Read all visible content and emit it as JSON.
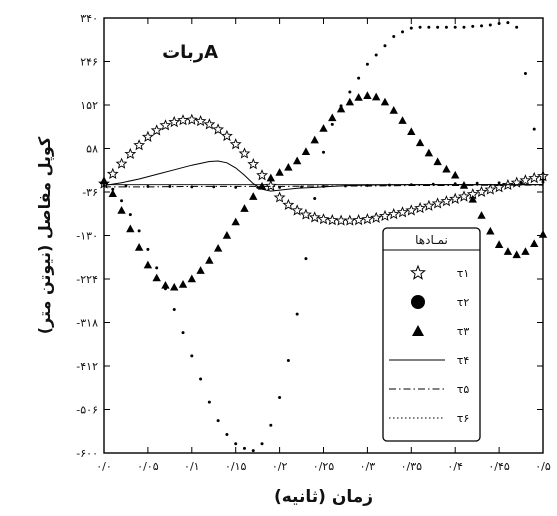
{
  "chart_data": {
    "type": "scatter",
    "title": "رباتA",
    "xlabel": "زمان (ثانیه)",
    "ylabel": "کوپل مفاصل (نیوتن متر)",
    "xlim": [
      0,
      0.5
    ],
    "ylim": [
      -600,
      340
    ],
    "x_ticks": [
      0,
      0.05,
      0.1,
      0.15,
      0.2,
      0.25,
      0.3,
      0.35,
      0.4,
      0.45,
      0.5
    ],
    "x_tick_labels": [
      "۰/۰",
      "۰/۰۵",
      "۰/۱",
      "۰/۱۵",
      "۰/۲",
      "۰/۲۵",
      "۰/۳",
      "۰/۳۵",
      "۰/۴",
      "۰/۴۵",
      "۰/۵"
    ],
    "y_ticks": [
      340,
      246,
      152,
      58,
      -36,
      -130,
      -224,
      -318,
      -412,
      -506,
      -600
    ],
    "y_tick_labels": [
      "۳۴۰",
      "۲۴۶",
      "۱۵۲",
      "۵۸",
      "-۳۶",
      "-۱۳۰",
      "-۲۲۴",
      "-۳۱۸",
      "-۴۱۲",
      "-۵۰۶",
      "-۶۰۰"
    ],
    "legend_title": "نمـادها",
    "legend_position": "bottom-right",
    "series": [
      {
        "name": "τ۱",
        "marker": "star",
        "x": [
          0,
          0.01,
          0.02,
          0.03,
          0.04,
          0.05,
          0.06,
          0.07,
          0.08,
          0.09,
          0.1,
          0.11,
          0.12,
          0.13,
          0.14,
          0.15,
          0.16,
          0.17,
          0.18,
          0.19,
          0.2,
          0.21,
          0.22,
          0.23,
          0.24,
          0.25,
          0.26,
          0.27,
          0.28,
          0.29,
          0.3,
          0.31,
          0.32,
          0.33,
          0.34,
          0.35,
          0.36,
          0.37,
          0.38,
          0.39,
          0.4,
          0.41,
          0.42,
          0.43,
          0.44,
          0.45,
          0.46,
          0.47,
          0.48,
          0.49,
          0.5
        ],
        "y": [
          -18,
          3,
          25,
          46,
          65,
          83,
          97,
          108,
          115,
          119,
          120,
          117,
          110,
          99,
          85,
          67,
          47,
          24,
          0,
          -23,
          -48,
          -64,
          -76,
          -85,
          -91,
          -95,
          -97,
          -98,
          -98,
          -97,
          -95,
          -92,
          -88,
          -84,
          -80,
          -76,
          -71,
          -66,
          -61,
          -56,
          -51,
          -46,
          -41,
          -36,
          -31,
          -26,
          -21,
          -16,
          -11,
          -6,
          -2
        ]
      },
      {
        "name": "τ۲",
        "marker": "circle",
        "x": [
          0,
          0.025,
          0.05,
          0.075,
          0.1,
          0.125,
          0.15,
          0.175,
          0.2,
          0.225,
          0.25,
          0.275,
          0.3,
          0.325,
          0.35,
          0.375,
          0.4,
          0.425,
          0.45,
          0.475,
          0.5
        ],
        "y": [
          -22,
          -23,
          -24,
          -24,
          -25,
          -25,
          -26,
          -26,
          -26,
          -25,
          -24,
          -23,
          -22,
          -21,
          -20,
          -19,
          -18,
          -17,
          -16,
          -16,
          -15
        ]
      },
      {
        "name": "τ۳",
        "marker": "triangle",
        "x": [
          0,
          0.01,
          0.02,
          0.03,
          0.04,
          0.05,
          0.06,
          0.07,
          0.08,
          0.09,
          0.1,
          0.11,
          0.12,
          0.13,
          0.14,
          0.15,
          0.16,
          0.17,
          0.18,
          0.19,
          0.2,
          0.21,
          0.22,
          0.23,
          0.24,
          0.25,
          0.26,
          0.27,
          0.28,
          0.29,
          0.3,
          0.31,
          0.32,
          0.33,
          0.34,
          0.35,
          0.36,
          0.37,
          0.38,
          0.39,
          0.4,
          0.41,
          0.42,
          0.43,
          0.44,
          0.45,
          0.46,
          0.47,
          0.48,
          0.49,
          0.5
        ],
        "y": [
          -12,
          -40,
          -76,
          -116,
          -156,
          -194,
          -222,
          -238,
          -242,
          -236,
          -224,
          -206,
          -184,
          -158,
          -130,
          -101,
          -72,
          -46,
          -24,
          -6,
          6,
          17,
          31,
          51,
          76,
          101,
          124,
          143,
          158,
          168,
          172,
          169,
          158,
          140,
          118,
          94,
          70,
          48,
          29,
          13,
          0,
          -22,
          -52,
          -87,
          -121,
          -150,
          -165,
          -172,
          -165,
          -148,
          -128
        ]
      },
      {
        "name": "τ۴",
        "marker": "solid",
        "x": [
          0,
          0.02,
          0.04,
          0.06,
          0.08,
          0.1,
          0.12,
          0.13,
          0.14,
          0.15,
          0.16,
          0.17,
          0.18,
          0.19,
          0.2,
          0.22,
          0.24,
          0.26,
          0.28,
          0.3,
          0.35,
          0.4,
          0.45,
          0.5
        ],
        "y": [
          -22,
          -16,
          -8,
          2,
          12,
          22,
          30,
          31,
          27,
          16,
          0,
          -18,
          -30,
          -34,
          -32,
          -28,
          -26,
          -24,
          -22,
          -21,
          -20,
          -20,
          -20,
          -20
        ]
      },
      {
        "name": "τ۵",
        "marker": "dashdot",
        "x": [
          0,
          0.05,
          0.1,
          0.15,
          0.2,
          0.25,
          0.3,
          0.35,
          0.4,
          0.45,
          0.5
        ],
        "y": [
          -25,
          -25,
          -24,
          -24,
          -24,
          -23,
          -23,
          -22,
          -22,
          -21,
          -21
        ]
      },
      {
        "name": "τ۶",
        "marker": "dots",
        "x": [
          0,
          0.01,
          0.02,
          0.03,
          0.04,
          0.05,
          0.06,
          0.07,
          0.08,
          0.09,
          0.1,
          0.11,
          0.12,
          0.13,
          0.14,
          0.15,
          0.16,
          0.17,
          0.18,
          0.19,
          0.2,
          0.21,
          0.22,
          0.23,
          0.24,
          0.25,
          0.26,
          0.27,
          0.28,
          0.29,
          0.3,
          0.31,
          0.32,
          0.33,
          0.34,
          0.35,
          0.36,
          0.37,
          0.38,
          0.39,
          0.4,
          0.41,
          0.42,
          0.43,
          0.44,
          0.45,
          0.46,
          0.47,
          0.48,
          0.49,
          0.5
        ],
        "y": [
          -15,
          -30,
          -55,
          -85,
          -120,
          -160,
          -200,
          -245,
          -290,
          -340,
          -390,
          -440,
          -490,
          -530,
          -560,
          -580,
          -590,
          -595,
          -580,
          -540,
          -480,
          -400,
          -300,
          -180,
          -50,
          50,
          110,
          150,
          180,
          210,
          240,
          260,
          280,
          300,
          310,
          318,
          320,
          320,
          320,
          320,
          320,
          320,
          322,
          323,
          325,
          328,
          330,
          320,
          220,
          100,
          -10
        ]
      }
    ]
  }
}
